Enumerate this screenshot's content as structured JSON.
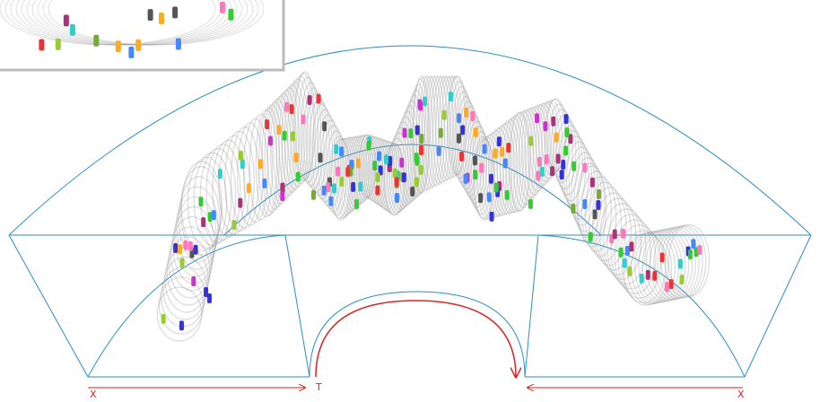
{
  "axis_labels": {
    "left": "X",
    "center": "T",
    "right": "X"
  }
}
